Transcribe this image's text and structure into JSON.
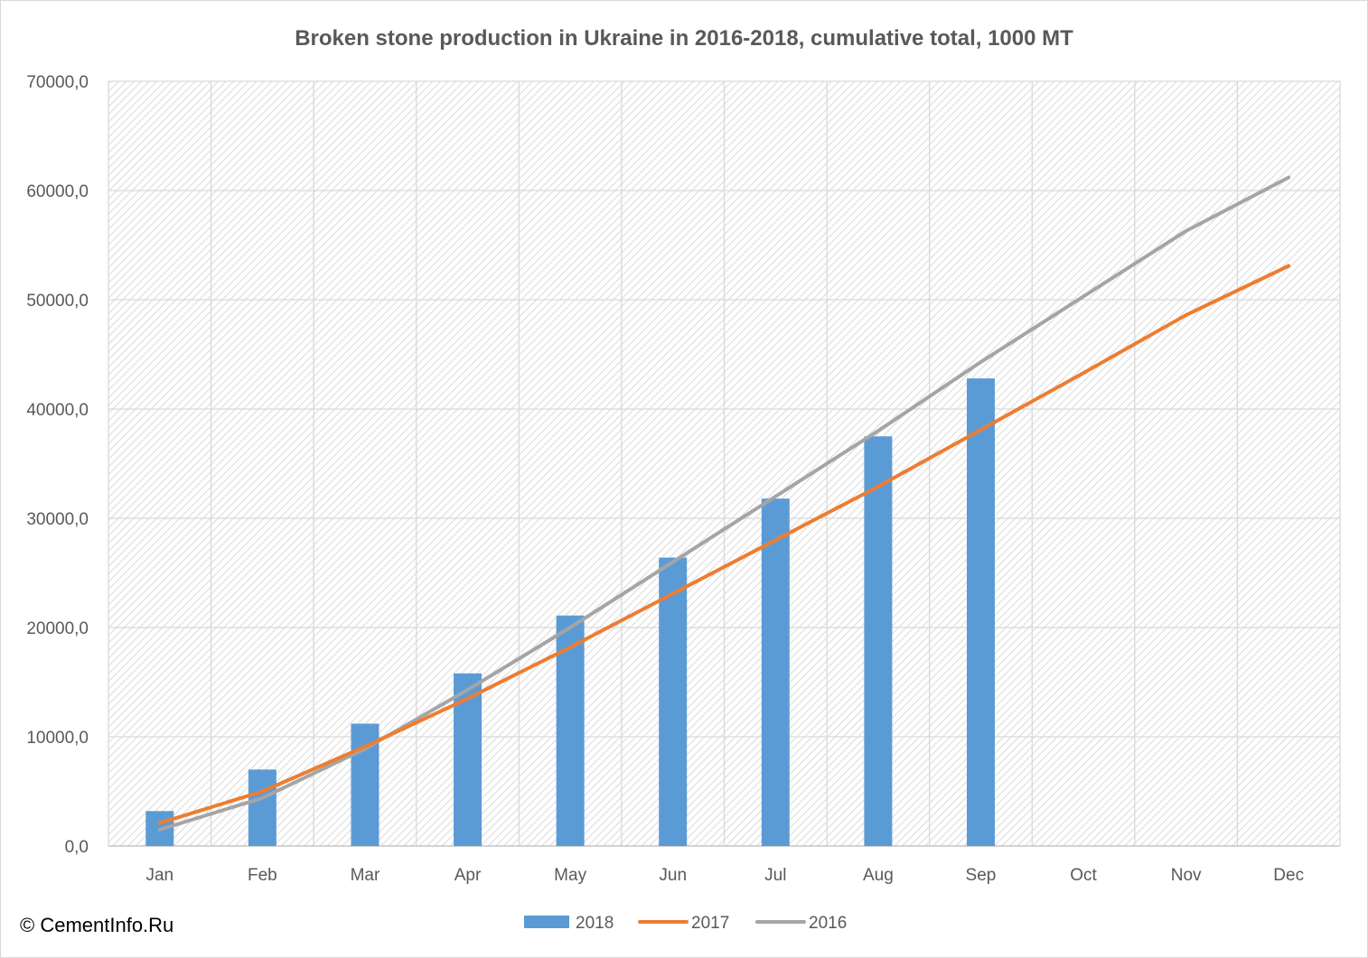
{
  "chart_data": {
    "type": "bar",
    "title": "Broken stone production in Ukraine in 2016-2018, cumulative total, 1000 MT",
    "xlabel": "",
    "ylabel": "",
    "categories": [
      "Jan",
      "Feb",
      "Mar",
      "Apr",
      "May",
      "Jun",
      "Jul",
      "Aug",
      "Sep",
      "Oct",
      "Nov",
      "Dec"
    ],
    "ylim": [
      0,
      70000
    ],
    "yticks": [
      0,
      10000,
      20000,
      30000,
      40000,
      50000,
      60000,
      70000
    ],
    "ytick_labels": [
      "0,0",
      "10000,0",
      "20000,0",
      "30000,0",
      "40000,0",
      "50000,0",
      "60000,0",
      "70000,0"
    ],
    "grid": true,
    "legend_position": "bottom",
    "series": [
      {
        "name": "2018",
        "kind": "bar",
        "color": "#5b9bd5",
        "values": [
          3200,
          7000,
          11200,
          15800,
          21100,
          26400,
          31800,
          37500,
          42800,
          null,
          null,
          null
        ]
      },
      {
        "name": "2017",
        "kind": "line",
        "color": "#ed7d31",
        "values": [
          2100,
          5000,
          9100,
          13500,
          18200,
          23100,
          28000,
          32900,
          38100,
          43300,
          48600,
          53100
        ]
      },
      {
        "name": "2016",
        "kind": "line",
        "color": "#a5a5a5",
        "values": [
          1500,
          4400,
          8900,
          14300,
          20000,
          26000,
          32000,
          38000,
          44300,
          50300,
          56300,
          61200
        ]
      }
    ]
  },
  "copyright": "© CementInfo.Ru"
}
